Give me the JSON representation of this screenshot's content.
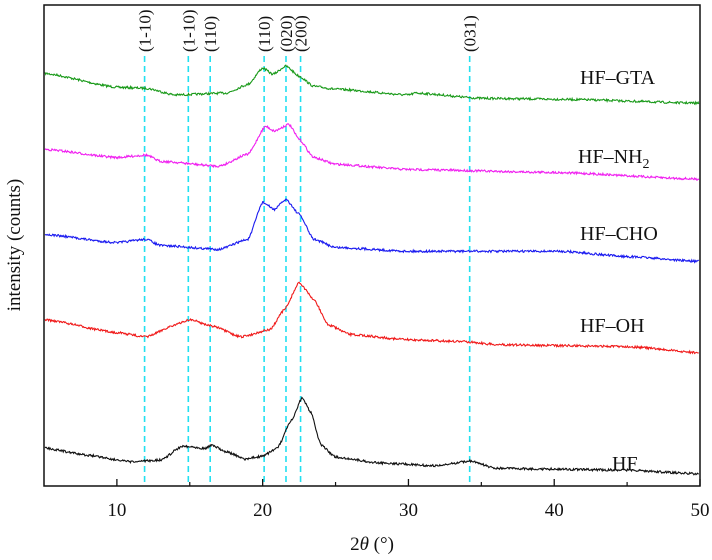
{
  "chart_data": {
    "type": "line",
    "xlabel": "2θ (°)",
    "xlabel_parts": {
      "pre": "2",
      "theta": "θ",
      "post": " (°)"
    },
    "ylabel": "intensity (counts)",
    "xlim": [
      5,
      50
    ],
    "ylim": [
      0,
      100
    ],
    "x_ticks": [
      10,
      20,
      30,
      40,
      50
    ],
    "x_minor_ticks": [
      15,
      25,
      35,
      45
    ],
    "y_ticks_shown": false,
    "grid": false,
    "legend": "labels next to curves on right",
    "reference_lines": {
      "color": "#22e0f0",
      "style": "dashed",
      "lines": [
        {
          "x": 11.9,
          "label": "(1-10)"
        },
        {
          "x": 14.9,
          "label": "(1-10)"
        },
        {
          "x": 16.4,
          "label": "(110)"
        },
        {
          "x": 20.1,
          "label": "(110)"
        },
        {
          "x": 21.6,
          "label": "(020)"
        },
        {
          "x": 22.6,
          "label": "(200)"
        },
        {
          "x": 34.2,
          "label": "(031)"
        }
      ]
    },
    "series": [
      {
        "name": "HF–GTA",
        "label_main": "HF–GTA",
        "label_sub": "",
        "color": "#1a9a1a",
        "x": [
          5,
          10,
          12,
          14,
          17.5,
          19,
          20,
          20.7,
          21.6,
          22.5,
          23.5,
          25,
          30,
          30.5,
          35,
          40.5,
          50
        ],
        "y": [
          85.8,
          82.9,
          82.7,
          81.3,
          81.7,
          83.5,
          86.9,
          85.6,
          87.3,
          85.2,
          83.1,
          82.5,
          81.3,
          81.7,
          80.6,
          80.4,
          79.6
        ]
      },
      {
        "name": "HF–NH2",
        "label_main": "HF–NH",
        "label_sub": "2",
        "color": "#f020f0",
        "x": [
          5,
          10,
          12,
          13,
          17,
          19,
          20.2,
          20.8,
          21.8,
          22.5,
          23.5,
          25,
          30,
          40,
          50
        ],
        "y": [
          70.0,
          68.3,
          68.8,
          67.5,
          66.5,
          69.0,
          74.8,
          73.8,
          75.2,
          72.1,
          68.3,
          66.9,
          65.8,
          65.2,
          63.8
        ]
      },
      {
        "name": "HF–CHO",
        "label_main": "HF–CHO",
        "label_sub": "",
        "color": "#1a1af0",
        "x": [
          5,
          10,
          12,
          13,
          17,
          19,
          20,
          20.8,
          21.6,
          22.5,
          23.5,
          25,
          30,
          34,
          40.5,
          45,
          50
        ],
        "y": [
          52.3,
          50.6,
          51.3,
          50.0,
          49.2,
          51.3,
          59.0,
          57.5,
          59.6,
          56.5,
          51.3,
          49.6,
          48.8,
          48.8,
          48.8,
          47.7,
          46.7
        ]
      },
      {
        "name": "HF–OH",
        "label_main": "HF–OH",
        "label_sub": "",
        "color": "#f01a1a",
        "x": [
          5,
          10,
          12,
          14,
          15,
          16.5,
          18.5,
          20.5,
          21.5,
          22.5,
          23.5,
          24.5,
          26,
          30,
          34,
          36,
          40,
          45,
          50
        ],
        "y": [
          34.6,
          31.9,
          31.0,
          33.5,
          34.6,
          33.3,
          31.0,
          32.5,
          36.7,
          42.3,
          38.8,
          33.5,
          31.5,
          30.4,
          30.0,
          29.4,
          29.2,
          29.0,
          27.7
        ]
      },
      {
        "name": "HF",
        "label_main": "HF",
        "label_sub": "",
        "color": "#111111",
        "x": [
          5,
          8,
          11,
          13,
          14.5,
          15.3,
          16,
          16.5,
          17.5,
          18.8,
          20,
          21,
          22,
          22.7,
          23.3,
          24,
          25,
          28,
          32,
          34.2,
          36,
          40,
          45,
          50
        ],
        "y": [
          7.9,
          6.4,
          5.0,
          5.4,
          8.3,
          8.1,
          7.8,
          8.5,
          7.1,
          5.6,
          6.2,
          7.9,
          13.7,
          18.3,
          15.4,
          8.5,
          6.0,
          4.8,
          4.2,
          5.2,
          3.7,
          3.5,
          3.3,
          2.5
        ]
      }
    ]
  }
}
